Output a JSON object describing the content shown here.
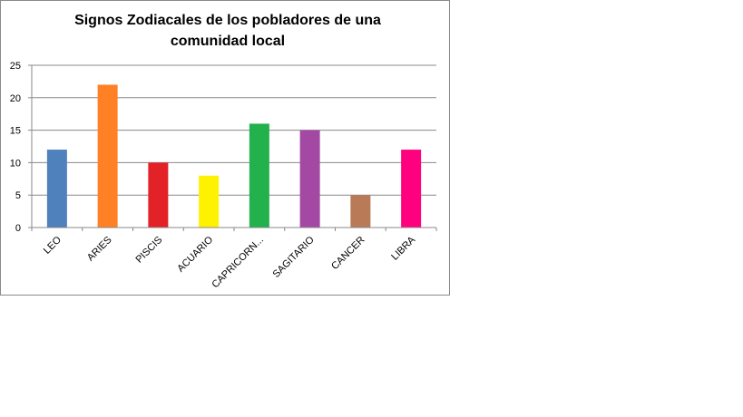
{
  "chart_data": {
    "type": "bar",
    "title": "Signos Zodiacales de los pobladores de una comunidad local",
    "categories": [
      "LEO",
      "ARIES",
      "PISCIS",
      "ACUARIO",
      "CAPRICORN...",
      "SAGITARIO",
      "CANCER",
      "LIBRA"
    ],
    "values": [
      12,
      22,
      10,
      8,
      16,
      15,
      5,
      12
    ],
    "colors": [
      "#4F81BD",
      "#FF8025",
      "#E32227",
      "#FFF200",
      "#22B14C",
      "#A349A4",
      "#B97A57",
      "#FF007F"
    ],
    "ylim": [
      0,
      25
    ],
    "yticks": [
      "0",
      "5",
      "10",
      "15",
      "20",
      "25"
    ],
    "grid": true,
    "legend": "none"
  }
}
